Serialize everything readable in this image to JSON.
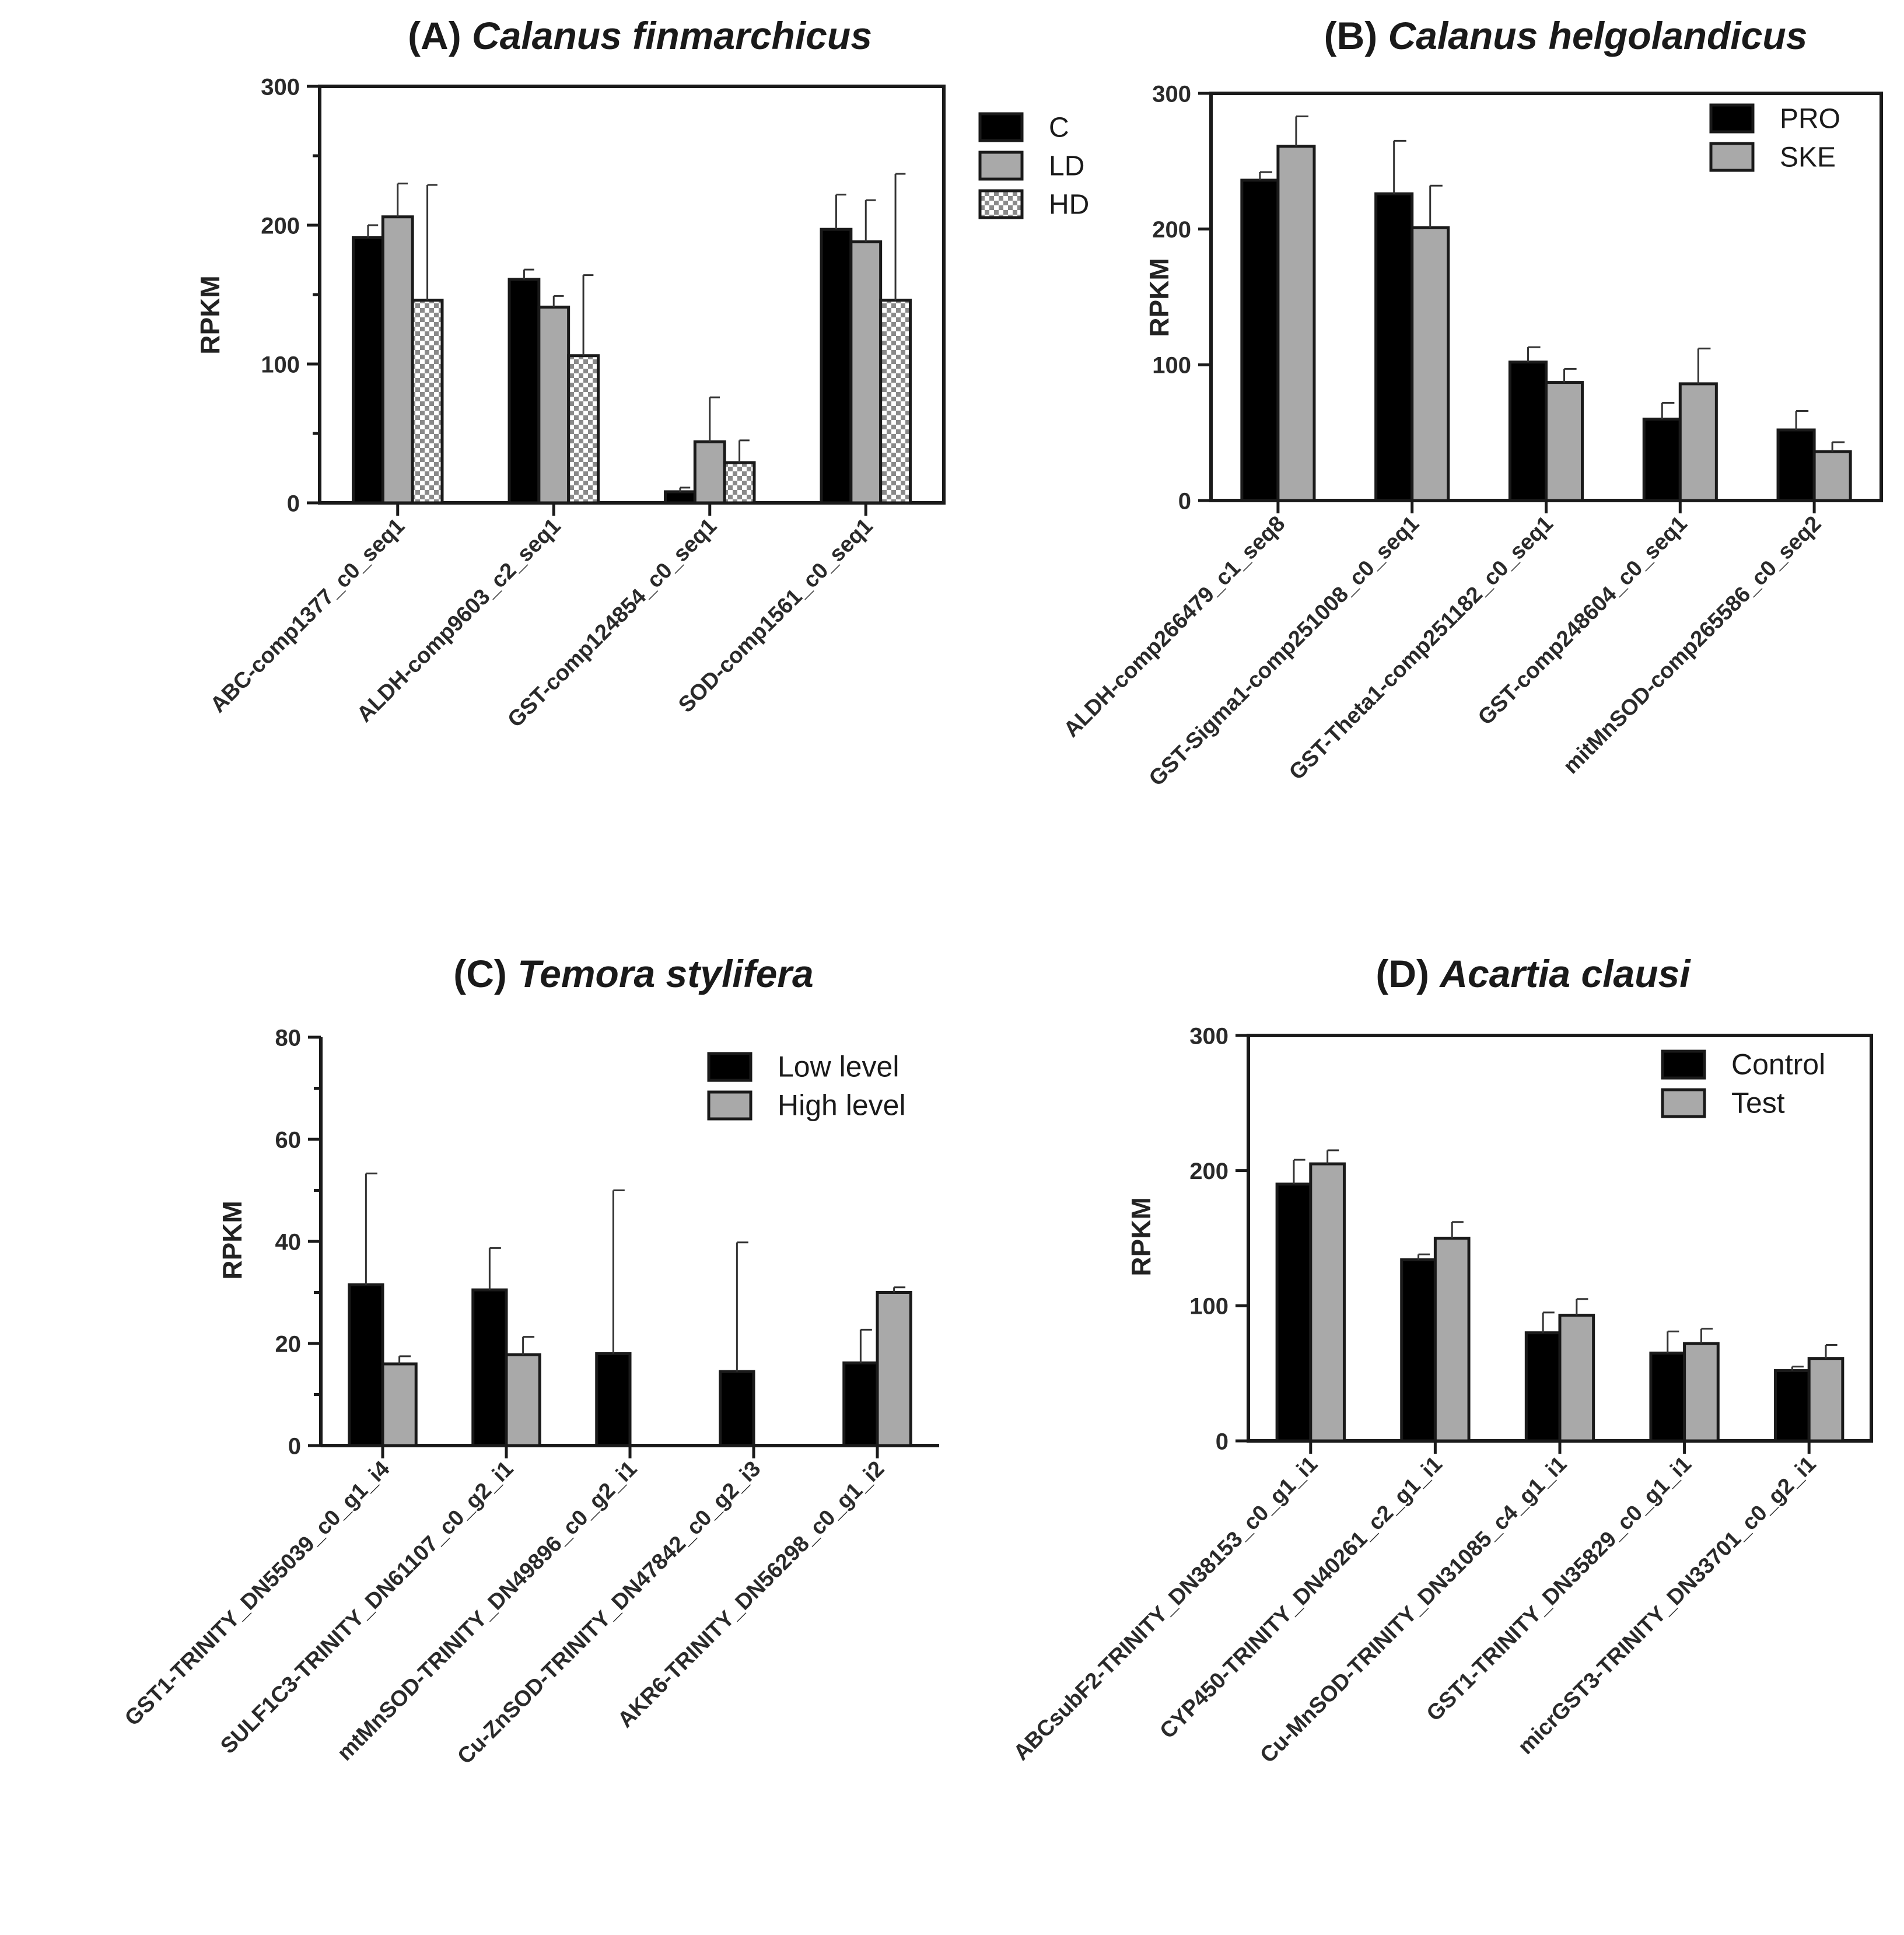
{
  "chart_data": [
    {
      "id": "A",
      "type": "bar",
      "title_prefix": "(A) ",
      "title_species": "Calanus finmarchicus",
      "ylabel": "RPKM",
      "ylim": [
        0,
        300
      ],
      "yticks": [
        "0",
        "100",
        "200",
        "300"
      ],
      "legend_position": "top-right-outside",
      "categories": [
        "ABC-comp1377_c0_seq1",
        "ALDH-comp9603_c2_seq1",
        "GST-comp124854_c0_seq1",
        "SOD-comp1561_c0_seq1"
      ],
      "series": [
        {
          "name": "C",
          "color": "#000000",
          "pattern": "solid",
          "values": [
            191,
            161,
            8,
            197
          ],
          "errors": [
            9,
            7,
            3,
            25
          ]
        },
        {
          "name": "LD",
          "color": "#a9a9a9",
          "pattern": "solid",
          "values": [
            206,
            141,
            44,
            188
          ],
          "errors": [
            24,
            8,
            32,
            30
          ]
        },
        {
          "name": "HD",
          "color": "#ffffff",
          "pattern": "checker",
          "values": [
            146,
            106,
            29,
            146
          ],
          "errors": [
            83,
            58,
            16,
            91
          ]
        }
      ]
    },
    {
      "id": "B",
      "type": "bar",
      "title_prefix": "(B) ",
      "title_species": "Calanus helgolandicus",
      "ylabel": "RPKM",
      "ylim": [
        0,
        300
      ],
      "yticks": [
        "0",
        "100",
        "200",
        "300"
      ],
      "legend_position": "top-right",
      "categories": [
        "ALDH-comp266479_c1_seq8",
        "GST-Sigma1-comp251008_c0_seq1",
        "GST-Theta1-comp251182_c0_seq1",
        "GST-comp248604_c0_seq1",
        "mitMnSOD-comp265586_c0_seq2"
      ],
      "series": [
        {
          "name": "PRO",
          "color": "#000000",
          "pattern": "solid",
          "values": [
            236,
            226,
            102,
            60,
            52
          ],
          "errors": [
            6,
            39,
            11,
            12,
            14
          ]
        },
        {
          "name": "SKE",
          "color": "#a9a9a9",
          "pattern": "solid",
          "values": [
            261,
            201,
            87,
            86,
            36
          ],
          "errors": [
            22,
            31,
            10,
            26,
            7
          ]
        }
      ]
    },
    {
      "id": "C",
      "type": "bar",
      "title_prefix": "(C) ",
      "title_species": "Temora stylifera",
      "ylabel": "RPKM",
      "ylim": [
        0,
        80
      ],
      "yticks": [
        "0",
        "20",
        "40",
        "60",
        "80"
      ],
      "legend_position": "top-right",
      "categories": [
        "GST1-TRINITY_DN55039_c0_g1_i4",
        "SULF1C3-TRINITY_DN61107_c0_g2_i1",
        "mtMnSOD-TRINITY_DN49896_c0_g2_i1",
        "Cu-ZnSOD-TRINITY_DN47842_c0_g2_i3",
        "AKR6-TRINITY_DN56298_c0_g1_i2"
      ],
      "series": [
        {
          "name": "Low level",
          "color": "#000000",
          "pattern": "solid",
          "values": [
            31.5,
            30.5,
            18,
            14.5,
            16.2
          ],
          "errors": [
            21.8,
            8.2,
            32,
            25.3,
            6.5
          ]
        },
        {
          "name": "High level",
          "color": "#a9a9a9",
          "pattern": "solid",
          "values": [
            16,
            17.8,
            0,
            0,
            30
          ],
          "errors": [
            1.5,
            3.5,
            0,
            0,
            1
          ]
        }
      ]
    },
    {
      "id": "D",
      "type": "bar",
      "title_prefix": "(D) ",
      "title_species": "Acartia clausi",
      "ylabel": "RPKM",
      "ylim": [
        0,
        300
      ],
      "yticks": [
        "0",
        "100",
        "200",
        "300"
      ],
      "legend_position": "top-right",
      "categories": [
        "ABCsubF2-TRINITY_DN38153_c0_g1_i1",
        "CYP450-TRINITY_DN40261_c2_g1_i1",
        "Cu-MnSOD-TRINITY_DN31085_c4_g1_i1",
        "GST1-TRINITY_DN35829_c0_g1_i1",
        "micrGST3-TRINITY_DN33701_c0_g2_i1"
      ],
      "series": [
        {
          "name": "Control",
          "color": "#000000",
          "pattern": "solid",
          "values": [
            190,
            134,
            80,
            65,
            52
          ],
          "errors": [
            18,
            4,
            15,
            16,
            3
          ]
        },
        {
          "name": "Test",
          "color": "#a9a9a9",
          "pattern": "solid",
          "values": [
            205,
            150,
            93,
            72,
            61
          ],
          "errors": [
            10,
            12,
            12,
            11,
            10
          ]
        }
      ]
    }
  ]
}
